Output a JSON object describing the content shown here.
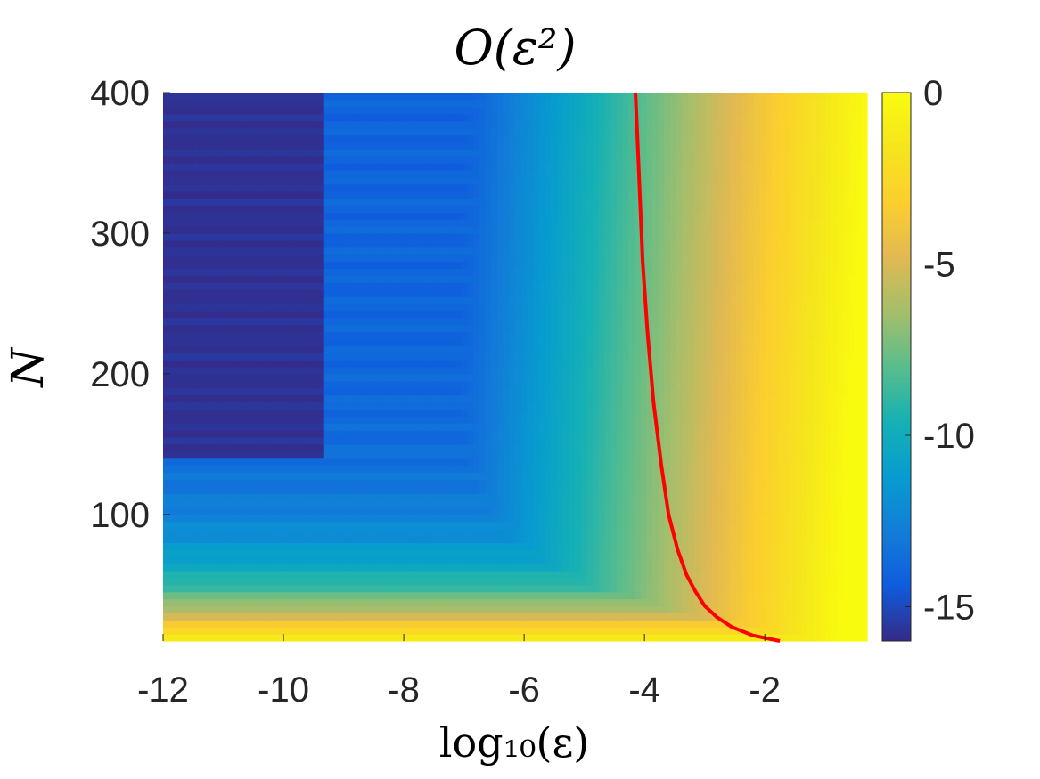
{
  "chart_data": {
    "type": "heatmap",
    "title": "O(ε²)",
    "xlabel": "log₁₀(ε)",
    "ylabel": "N",
    "xlim": [
      -12,
      -0.3
    ],
    "ylim": [
      10,
      400
    ],
    "xticks": [
      -12,
      -10,
      -8,
      -6,
      -4,
      -2
    ],
    "xtick_labels": [
      "-12",
      "-10",
      "-8",
      "-6",
      "-4",
      "-2"
    ],
    "yticks": [
      100,
      200,
      300,
      400
    ],
    "ytick_labels": [
      "100",
      "200",
      "300",
      "400"
    ],
    "colorbar": {
      "range": [
        -16,
        0
      ],
      "ticks": [
        0,
        -5,
        -10,
        -15
      ],
      "tick_labels": [
        "0",
        "-5",
        "-10",
        "-15"
      ],
      "colormap": "parula"
    },
    "field_description_values": {
      "noise_floor": -15.5,
      "floor_reached_for_N_above": 140,
      "max_value": 0
    },
    "overlay_curve": {
      "color": "#ff0000",
      "points": [
        [
          -1.75,
          10
        ],
        [
          -2.2,
          14
        ],
        [
          -2.55,
          20
        ],
        [
          -2.8,
          27
        ],
        [
          -3.0,
          35
        ],
        [
          -3.15,
          45
        ],
        [
          -3.3,
          57
        ],
        [
          -3.45,
          75
        ],
        [
          -3.6,
          100
        ],
        [
          -3.72,
          135
        ],
        [
          -3.85,
          180
        ],
        [
          -3.95,
          230
        ],
        [
          -4.03,
          280
        ],
        [
          -4.08,
          330
        ],
        [
          -4.12,
          370
        ],
        [
          -4.15,
          400
        ]
      ]
    }
  },
  "colors": {
    "curve": "#ff0000",
    "axis_text": "#262626",
    "background": "#ffffff"
  }
}
